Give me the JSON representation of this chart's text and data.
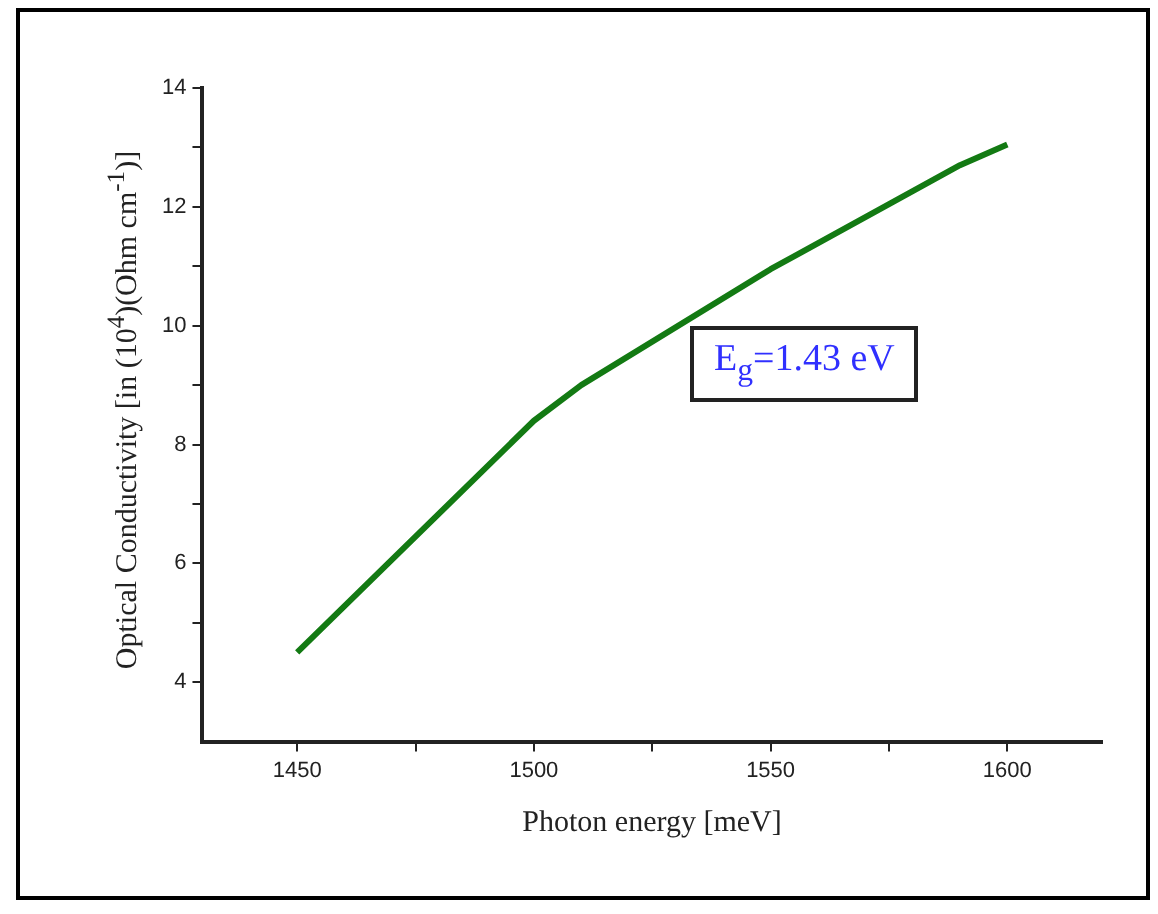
{
  "chart_data": {
    "type": "line",
    "xlabel": "Photon energy [meV]",
    "ylabel": "Optical Conductivity [in (10$^{4}$)(Ohm cm$^{-1}$)]",
    "annotations": [
      "E$_{g}$=1.43 eV"
    ],
    "x": [
      1450,
      1500,
      1510,
      1550,
      1590,
      1600
    ],
    "series": [
      {
        "color": "#137a13",
        "values": [
          4.5,
          8.4,
          9.0,
          10.95,
          12.7,
          13.05
        ]
      }
    ],
    "xlim": [
      1430,
      1620
    ],
    "xticks": [
      1450,
      {
        "value": 1475,
        "label": null
      },
      1500,
      {
        "value": 1525,
        "label": null
      },
      1550,
      {
        "value": 1575,
        "label": null
      },
      1600
    ],
    "ylim": [
      3,
      14
    ],
    "yticks": [
      4,
      {
        "value": 5,
        "label": null
      },
      6,
      {
        "value": 7,
        "label": null
      },
      8,
      {
        "value": 9,
        "label": null
      },
      10,
      {
        "value": 11,
        "label": null
      },
      12,
      {
        "value": 13,
        "label": null
      },
      14
    ],
    "grid": false,
    "legend": false,
    "marker": "none",
    "line_style": "solid"
  }
}
